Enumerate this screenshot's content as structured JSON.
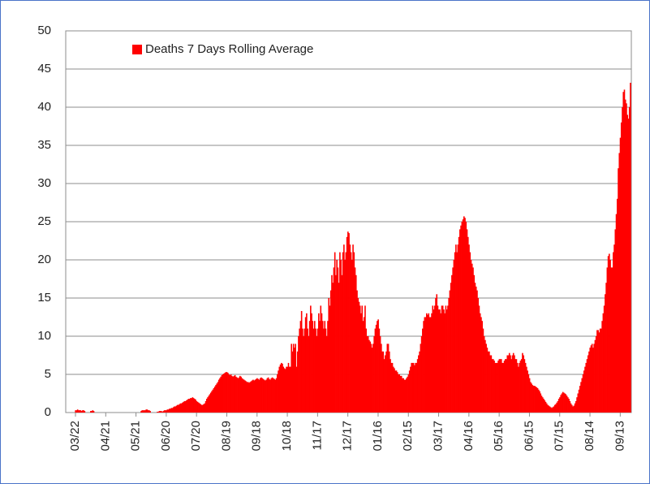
{
  "chart_data": {
    "type": "bar",
    "series": [
      {
        "name": "Deaths 7 Days Rolling Average",
        "color": "#ff0000",
        "values": [
          0.3,
          0.3,
          0.4,
          0.3,
          0.3,
          0.3,
          0.2,
          0.3,
          0.3,
          0.2,
          0,
          0,
          0,
          0,
          0,
          0.2,
          0.2,
          0.3,
          0.2,
          0,
          0,
          0,
          0,
          0,
          0,
          0,
          0,
          0,
          0,
          0,
          0,
          0,
          0,
          0,
          0,
          0,
          0,
          0,
          0,
          0,
          0,
          0,
          0,
          0,
          0,
          0,
          0,
          0,
          0,
          0,
          0,
          0,
          0,
          0,
          0,
          0,
          0,
          0,
          0,
          0,
          0,
          0,
          0,
          0,
          0,
          0.2,
          0.3,
          0.3,
          0.3,
          0.3,
          0.4,
          0.4,
          0.3,
          0.3,
          0.2,
          0,
          0,
          0,
          0,
          0,
          0,
          0.1,
          0.1,
          0.2,
          0.2,
          0.2,
          0.1,
          0.2,
          0.3,
          0.3,
          0.3,
          0.4,
          0.4,
          0.5,
          0.5,
          0.6,
          0.6,
          0.7,
          0.8,
          0.8,
          0.9,
          1,
          1,
          1.1,
          1.2,
          1.2,
          1.3,
          1.4,
          1.5,
          1.5,
          1.6,
          1.7,
          1.8,
          1.8,
          1.9,
          1.9,
          2,
          1.9,
          1.8,
          1.7,
          1.5,
          1.4,
          1.3,
          1.2,
          1.1,
          1,
          1,
          1.1,
          1.2,
          1.5,
          1.8,
          2,
          2.2,
          2.4,
          2.6,
          2.8,
          3,
          3.2,
          3.4,
          3.6,
          3.8,
          4,
          4.3,
          4.5,
          4.7,
          4.9,
          5,
          5.1,
          5.2,
          5.3,
          5.3,
          5.2,
          5,
          4.9,
          5,
          4.8,
          4.7,
          4.8,
          4.9,
          4.7,
          4.6,
          4.5,
          4.6,
          4.8,
          4.7,
          4.5,
          4.4,
          4.3,
          4.2,
          4.1,
          4,
          4,
          3.9,
          4,
          4.1,
          4.2,
          4.3,
          4.2,
          4.3,
          4.4,
          4.5,
          4.4,
          4.3,
          4.5,
          4.6,
          4.5,
          4.4,
          4.3,
          4.2,
          4.3,
          4.5,
          4.6,
          4.4,
          4.3,
          4.5,
          4.6,
          4.5,
          4.4,
          4.3,
          4.5,
          5,
          5.5,
          6,
          6.3,
          6.5,
          6.4,
          6,
          5.8,
          5.7,
          6,
          6,
          6.5,
          6,
          6,
          9,
          8,
          9,
          8.5,
          9,
          6,
          8,
          10,
          11,
          12,
          13.3,
          11,
          10,
          11,
          12.5,
          13,
          11,
          10,
          12,
          14,
          13,
          12,
          11,
          12,
          11,
          10,
          11,
          13,
          12,
          14,
          13,
          12,
          11,
          12,
          11,
          10,
          12,
          15,
          14,
          16,
          18,
          17,
          19,
          21,
          18,
          20,
          19,
          17,
          21,
          20,
          18,
          21,
          22,
          20,
          21,
          23,
          23.7,
          23.5,
          22,
          21,
          20,
          22,
          21,
          19,
          18,
          16,
          15,
          14.5,
          14,
          13,
          14,
          12,
          12.5,
          14,
          11,
          10,
          10,
          9.5,
          9.3,
          9,
          8.5,
          9,
          10,
          11,
          11.5,
          12,
          12.2,
          11,
          10,
          9,
          8,
          8,
          7,
          7.5,
          8,
          9,
          9,
          8,
          7,
          6.5,
          6.5,
          6,
          5.8,
          5.5,
          5.5,
          5.3,
          5,
          5,
          4.8,
          4.8,
          4.5,
          4.5,
          4.3,
          4.3,
          4.5,
          4.7,
          5,
          5.5,
          6,
          6.5,
          6.5,
          6.5,
          6.2,
          6.5,
          6.5,
          7,
          7.5,
          8,
          9,
          10,
          11,
          12,
          12.5,
          12.5,
          13,
          12.8,
          13,
          12.5,
          12.5,
          13,
          14,
          13.5,
          14,
          15,
          15.5,
          14,
          13.5,
          13.5,
          13,
          14,
          14,
          13.5,
          13,
          14,
          13.5,
          14,
          15,
          16,
          17,
          18,
          19,
          20,
          21,
          22,
          21,
          22,
          23,
          24,
          24.5,
          25,
          25.3,
          25.7,
          25.5,
          25,
          24,
          23,
          22,
          21,
          20,
          19.5,
          19,
          18,
          17,
          16.5,
          16,
          15,
          14,
          13,
          12.5,
          12,
          11,
          10,
          9.5,
          9,
          8.5,
          8,
          8,
          7.5,
          7.5,
          7,
          7,
          6.8,
          6.5,
          6.5,
          6.5,
          6.8,
          7,
          7,
          7,
          6.5,
          6.5,
          6.8,
          7,
          7,
          7.5,
          7.5,
          7.8,
          7.5,
          7,
          7.5,
          7.8,
          7.5,
          7,
          7,
          6.5,
          6,
          6.5,
          6.8,
          7,
          7.8,
          7.5,
          7,
          6.5,
          6,
          5.5,
          5,
          4.5,
          4,
          3.8,
          3.6,
          3.5,
          3.5,
          3.4,
          3.3,
          3.2,
          3,
          2.8,
          2.5,
          2.2,
          2,
          1.8,
          1.6,
          1.4,
          1.2,
          1,
          0.9,
          0.8,
          0.7,
          0.6,
          0.7,
          0.8,
          1,
          1.1,
          1.3,
          1.5,
          1.8,
          2,
          2.3,
          2.5,
          2.7,
          2.6,
          2.5,
          2.4,
          2.2,
          2,
          1.8,
          1.5,
          1.2,
          1,
          0.8,
          0.9,
          1.2,
          1.5,
          2,
          2.5,
          3,
          3.5,
          4,
          4.5,
          5,
          5.5,
          6,
          6.5,
          7,
          7.5,
          8,
          8.5,
          8.8,
          9,
          8.5,
          9,
          9.5,
          10,
          10.8,
          10.8,
          10.5,
          11,
          11,
          12,
          13,
          14,
          15.5,
          17,
          19,
          20.5,
          20.8,
          20,
          19,
          19,
          21,
          22,
          24,
          26,
          28,
          32,
          34,
          36,
          38,
          40,
          42,
          42.3,
          41,
          40.5,
          39,
          38.5,
          40,
          43.2
        ]
      }
    ],
    "categories": [
      "03/22",
      null,
      null,
      null,
      null,
      null,
      null,
      null,
      null,
      null,
      null,
      null,
      null,
      null,
      null,
      null,
      null,
      null,
      null,
      null,
      null,
      null,
      null,
      null,
      null,
      null,
      null,
      null,
      null,
      null,
      "04/21",
      null,
      null,
      null,
      null,
      null,
      null,
      null,
      null,
      null,
      null,
      null,
      null,
      null,
      null,
      null,
      null,
      null,
      null,
      null,
      null,
      null,
      null,
      null,
      null,
      null,
      null,
      null,
      null,
      null,
      "05/21",
      null,
      null,
      null,
      null,
      null,
      null,
      null,
      null,
      null,
      null,
      null,
      null,
      null,
      null,
      null,
      null,
      null,
      null,
      null,
      null,
      null,
      null,
      null,
      null,
      null,
      null,
      null,
      null,
      null,
      "06/20",
      null,
      null,
      null,
      null,
      null,
      null,
      null,
      null,
      null,
      null,
      null,
      null,
      null,
      null,
      null,
      null,
      null,
      null,
      null,
      null,
      null,
      null,
      null,
      null,
      null,
      null,
      null,
      null,
      null,
      "07/20",
      null,
      null,
      null,
      null,
      null,
      null,
      null,
      null,
      null,
      null,
      null,
      null,
      null,
      null,
      null,
      null,
      null,
      null,
      null,
      null,
      null,
      null,
      null,
      null,
      null,
      null,
      null,
      null,
      null,
      "08/19",
      null,
      null,
      null,
      null,
      null,
      null,
      null,
      null,
      null,
      null,
      null,
      null,
      null,
      null,
      null,
      null,
      null,
      null,
      null,
      null,
      null,
      null,
      null,
      null,
      null,
      null,
      null,
      null,
      null,
      "09/18",
      null,
      null,
      null,
      null,
      null,
      null,
      null,
      null,
      null,
      null,
      null,
      null,
      null,
      null,
      null,
      null,
      null,
      null,
      null,
      null,
      null,
      null,
      null,
      null,
      null,
      null,
      null,
      null,
      null,
      "10/18",
      null,
      null,
      null,
      null,
      null,
      null,
      null,
      null,
      null,
      null,
      null,
      null,
      null,
      null,
      null,
      null,
      null,
      null,
      null,
      null,
      null,
      null,
      null,
      null,
      null,
      null,
      null,
      null,
      null,
      "11/17",
      null,
      null,
      null,
      null,
      null,
      null,
      null,
      null,
      null,
      null,
      null,
      null,
      null,
      null,
      null,
      null,
      null,
      null,
      null,
      null,
      null,
      null,
      null,
      null,
      null,
      null,
      null,
      null,
      null,
      "12/17",
      null,
      null,
      null,
      null,
      null,
      null,
      null,
      null,
      null,
      null,
      null,
      null,
      null,
      null,
      null,
      null,
      null,
      null,
      null,
      null,
      null,
      null,
      null,
      null,
      null,
      null,
      null,
      null,
      null,
      "01/16",
      null,
      null,
      null,
      null,
      null,
      null,
      null,
      null,
      null,
      null,
      null,
      null,
      null,
      null,
      null,
      null,
      null,
      null,
      null,
      null,
      null,
      null,
      null,
      null,
      null,
      null,
      null,
      null,
      null,
      "02/15",
      null,
      null,
      null,
      null,
      null,
      null,
      null,
      null,
      null,
      null,
      null,
      null,
      null,
      null,
      null,
      null,
      null,
      null,
      null,
      null,
      null,
      null,
      null,
      null,
      null,
      null,
      null,
      null,
      null,
      "03/17",
      null,
      null,
      null,
      null,
      null,
      null,
      null,
      null,
      null,
      null,
      null,
      null,
      null,
      null,
      null,
      null,
      null,
      null,
      null,
      null,
      null,
      null,
      null,
      null,
      null,
      null,
      null,
      null,
      null,
      "04/16",
      null,
      null,
      null,
      null,
      null,
      null,
      null,
      null,
      null,
      null,
      null,
      null,
      null,
      null,
      null,
      null,
      null,
      null,
      null,
      null,
      null,
      null,
      null,
      null,
      null,
      null,
      null,
      null,
      null,
      "05/16",
      null,
      null,
      null,
      null,
      null,
      null,
      null,
      null,
      null,
      null,
      null,
      null,
      null,
      null,
      null,
      null,
      null,
      null,
      null,
      null,
      null,
      null,
      null,
      null,
      null,
      null,
      null,
      null,
      null,
      "06/15",
      null,
      null,
      null,
      null,
      null,
      null,
      null,
      null,
      null,
      null,
      null,
      null,
      null,
      null,
      null,
      null,
      null,
      null,
      null,
      null,
      null,
      null,
      null,
      null,
      null,
      null,
      null,
      null,
      null,
      "07/15",
      null,
      null,
      null,
      null,
      null,
      null,
      null,
      null,
      null,
      null,
      null,
      null,
      null,
      null,
      null,
      null,
      null,
      null,
      null,
      null,
      null,
      null,
      null,
      null,
      null,
      null,
      null,
      null,
      null,
      "08/14",
      null,
      null,
      null,
      null,
      null,
      null,
      null,
      null,
      null,
      null,
      null,
      null,
      null,
      null,
      null,
      null,
      null,
      null,
      null,
      null,
      null,
      null,
      null,
      null,
      null,
      null,
      null,
      null,
      null,
      "09/13",
      null,
      null,
      null,
      null,
      null,
      null,
      null,
      null,
      null,
      null
    ],
    "ylim": [
      0,
      50
    ],
    "yticks": [
      0,
      5,
      10,
      15,
      20,
      25,
      30,
      35,
      40,
      45,
      50
    ],
    "grid": true,
    "legend": "top-left"
  }
}
